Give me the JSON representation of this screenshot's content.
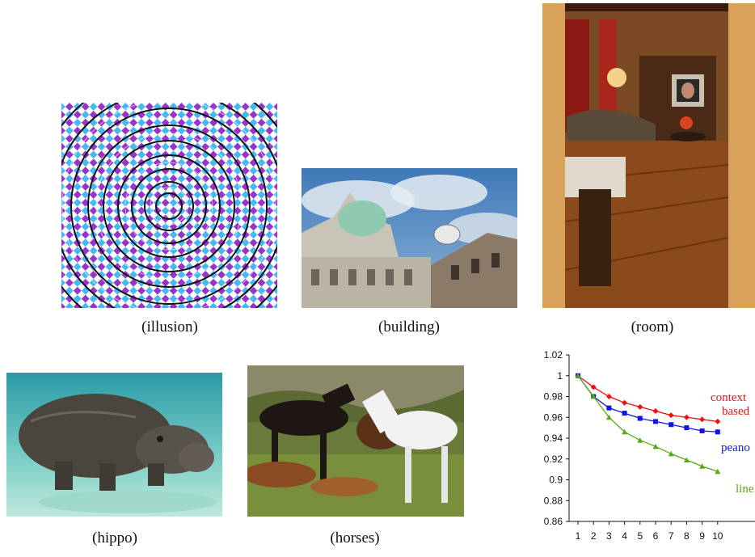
{
  "captions": {
    "illusion": "(illusion)",
    "building": "(building)",
    "room": "(room)",
    "hippo": "(hippo)",
    "horses": "(horses)"
  },
  "chart_data": {
    "type": "line",
    "x": [
      1,
      2,
      3,
      4,
      5,
      6,
      7,
      8,
      9,
      10
    ],
    "x_tick_labels": [
      "1",
      "2",
      "3",
      "4",
      "5",
      "6",
      "7",
      "8",
      "9",
      "10"
    ],
    "ylim": [
      0.86,
      1.02
    ],
    "y_tick_labels": [
      "1.02",
      "1",
      "0.98",
      "0.96",
      "0.94",
      "0.92",
      "0.9",
      "0.88",
      "0.86"
    ],
    "series": [
      {
        "name": "context based",
        "label_lines": [
          "context",
          "based"
        ],
        "color": "#ee1111",
        "marker": "diamond",
        "values": [
          1.0,
          0.989,
          0.98,
          0.974,
          0.97,
          0.966,
          0.962,
          0.96,
          0.958,
          0.956
        ]
      },
      {
        "name": "peano",
        "label_lines": [
          "peano"
        ],
        "color": "#1111ee",
        "marker": "square",
        "values": [
          1.0,
          0.98,
          0.969,
          0.964,
          0.959,
          0.956,
          0.953,
          0.95,
          0.947,
          0.946
        ]
      },
      {
        "name": "line",
        "label_lines": [
          "line"
        ],
        "color": "#55aa11",
        "marker": "triangle",
        "values": [
          1.0,
          0.98,
          0.96,
          0.946,
          0.938,
          0.932,
          0.925,
          0.919,
          0.913,
          0.908
        ]
      }
    ]
  }
}
